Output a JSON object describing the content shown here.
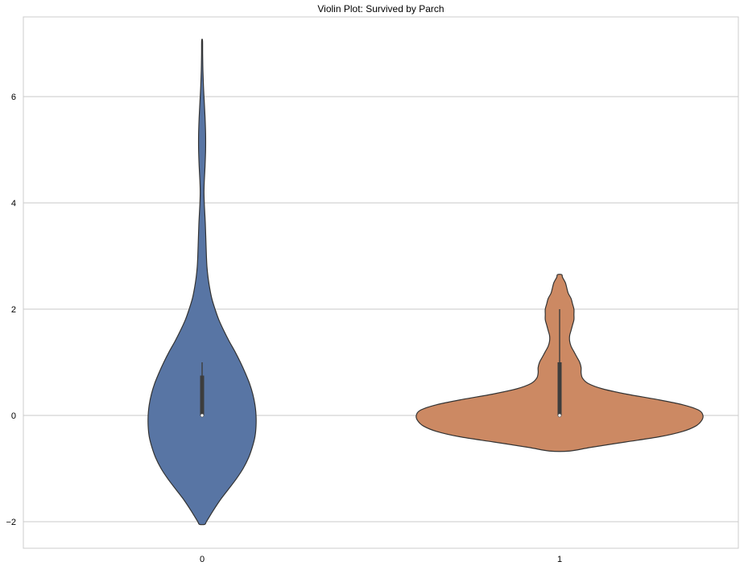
{
  "chart_data": {
    "type": "violin",
    "title": "Violin Plot: Survived by Parch",
    "xlabel": "",
    "ylabel": "",
    "categories": [
      "0",
      "1"
    ],
    "ylim": [
      -2.5,
      7.5
    ],
    "yticks": [
      -2,
      0,
      2,
      4,
      6
    ],
    "ytick_labels": [
      "−2",
      "0",
      "2",
      "4",
      "6"
    ],
    "grid": "horizontal",
    "series": [
      {
        "category": "0",
        "color": "#5875a4",
        "density_profile": [
          [
            -2.05,
            0.05
          ],
          [
            -2.0,
            0.08
          ],
          [
            -1.8,
            0.2
          ],
          [
            -1.6,
            0.33
          ],
          [
            -1.4,
            0.48
          ],
          [
            -1.2,
            0.63
          ],
          [
            -1.0,
            0.76
          ],
          [
            -0.8,
            0.86
          ],
          [
            -0.6,
            0.93
          ],
          [
            -0.4,
            0.98
          ],
          [
            -0.2,
            1.0
          ],
          [
            0.0,
            1.0
          ],
          [
            0.2,
            0.98
          ],
          [
            0.4,
            0.94
          ],
          [
            0.6,
            0.88
          ],
          [
            0.8,
            0.8
          ],
          [
            1.0,
            0.71
          ],
          [
            1.2,
            0.61
          ],
          [
            1.4,
            0.5
          ],
          [
            1.6,
            0.4
          ],
          [
            1.8,
            0.31
          ],
          [
            2.0,
            0.24
          ],
          [
            2.2,
            0.18
          ],
          [
            2.4,
            0.14
          ],
          [
            2.6,
            0.11
          ],
          [
            2.8,
            0.09
          ],
          [
            3.0,
            0.08
          ],
          [
            3.3,
            0.07
          ],
          [
            3.6,
            0.06
          ],
          [
            3.8,
            0.05
          ],
          [
            4.0,
            0.04
          ],
          [
            4.2,
            0.035
          ],
          [
            4.4,
            0.04
          ],
          [
            4.7,
            0.055
          ],
          [
            5.0,
            0.065
          ],
          [
            5.3,
            0.065
          ],
          [
            5.6,
            0.055
          ],
          [
            5.9,
            0.04
          ],
          [
            6.2,
            0.025
          ],
          [
            6.5,
            0.015
          ],
          [
            6.8,
            0.01
          ],
          [
            7.05,
            0.008
          ]
        ],
        "box": {
          "q1": 0,
          "median": 0,
          "q3": 0.75,
          "whisker_low": 0,
          "whisker_high": 1
        }
      },
      {
        "category": "1",
        "color": "#cc8963",
        "density_profile": [
          [
            -0.67,
            0.07
          ],
          [
            -0.6,
            0.22
          ],
          [
            -0.5,
            0.46
          ],
          [
            -0.4,
            0.7
          ],
          [
            -0.3,
            0.86
          ],
          [
            -0.2,
            0.95
          ],
          [
            -0.1,
            0.99
          ],
          [
            0.0,
            1.0
          ],
          [
            0.1,
            0.97
          ],
          [
            0.2,
            0.86
          ],
          [
            0.3,
            0.68
          ],
          [
            0.4,
            0.47
          ],
          [
            0.5,
            0.3
          ],
          [
            0.6,
            0.2
          ],
          [
            0.7,
            0.16
          ],
          [
            0.8,
            0.15
          ],
          [
            0.9,
            0.15
          ],
          [
            1.0,
            0.14
          ],
          [
            1.1,
            0.12
          ],
          [
            1.2,
            0.1
          ],
          [
            1.3,
            0.08
          ],
          [
            1.4,
            0.07
          ],
          [
            1.5,
            0.07
          ],
          [
            1.6,
            0.08
          ],
          [
            1.7,
            0.09
          ],
          [
            1.8,
            0.1
          ],
          [
            1.9,
            0.1
          ],
          [
            2.0,
            0.1
          ],
          [
            2.1,
            0.09
          ],
          [
            2.2,
            0.08
          ],
          [
            2.3,
            0.06
          ],
          [
            2.4,
            0.05
          ],
          [
            2.5,
            0.04
          ],
          [
            2.6,
            0.02
          ],
          [
            2.65,
            0.015
          ]
        ],
        "box": {
          "q1": 0,
          "median": 0,
          "q3": 1,
          "whisker_low": 0,
          "whisker_high": 2
        }
      }
    ]
  }
}
